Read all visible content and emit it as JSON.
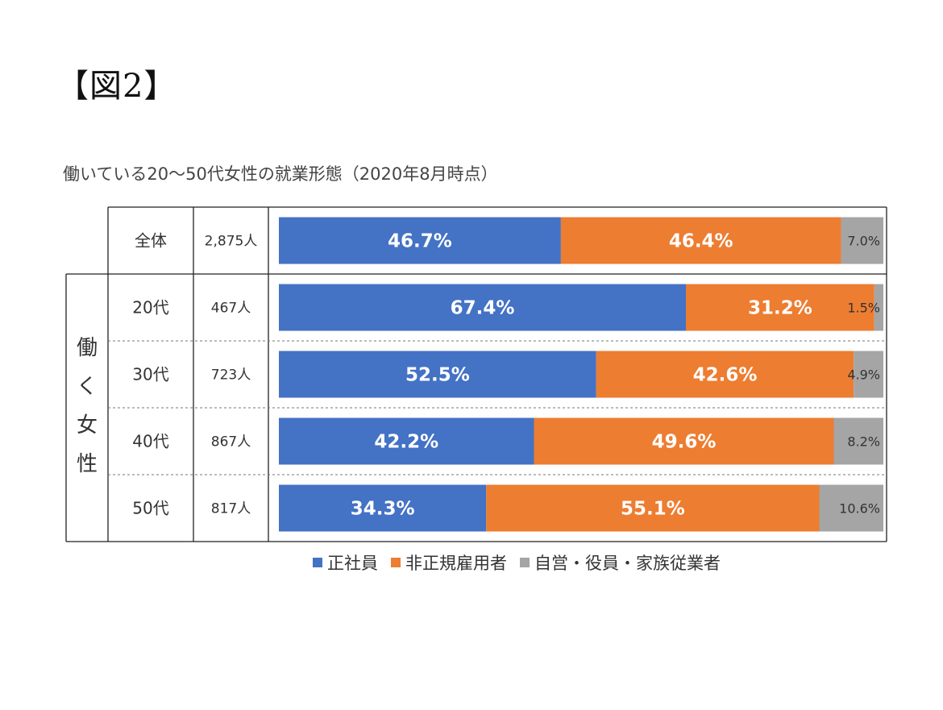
{
  "figure_label": "【図2】",
  "chart_data": {
    "type": "bar",
    "orientation": "horizontal",
    "stacked": true,
    "percent_stacked": true,
    "title": "働いている20〜50代女性の就業形態（2020年8月時点）",
    "group_label": "働く女性",
    "categories": [
      "全体",
      "20代",
      "30代",
      "40代",
      "50代"
    ],
    "counts": [
      "2,875人",
      "467人",
      "723人",
      "867人",
      "817人"
    ],
    "series": [
      {
        "name": "正社員",
        "color": "#4472c4",
        "values": [
          46.7,
          67.4,
          52.5,
          42.2,
          34.3
        ],
        "labels": [
          "46.7%",
          "67.4%",
          "52.5%",
          "42.2%",
          "34.3%"
        ]
      },
      {
        "name": "非正規雇用者",
        "color": "#ed7d31",
        "values": [
          46.4,
          31.2,
          42.6,
          49.6,
          55.1
        ],
        "labels": [
          "46.4%",
          "31.2%",
          "42.6%",
          "49.6%",
          "55.1%"
        ]
      },
      {
        "name": "自営・役員・家族従業者",
        "color": "#a5a5a5",
        "values": [
          7.0,
          1.5,
          4.9,
          8.2,
          10.6
        ],
        "labels": [
          "7.0%",
          "1.5%",
          "4.9%",
          "8.2%",
          "10.6%"
        ]
      }
    ],
    "legend_position": "bottom",
    "grid": false
  }
}
